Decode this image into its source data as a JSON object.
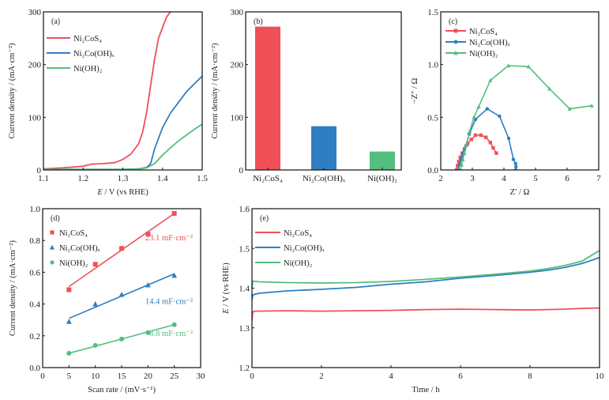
{
  "colors": {
    "red": "#ef5058",
    "blue": "#2f7ec1",
    "green": "#53be7e"
  },
  "chart_data": [
    {
      "id": "a",
      "panel_label": "(a)",
      "type": "line",
      "title": "",
      "xlabel_italic": "E",
      "xlabel_rest": " / V (vs RHE)",
      "ylabel": "Current density / (mA·cm⁻²)",
      "xlim": [
        1.1,
        1.5
      ],
      "ylim": [
        0,
        300
      ],
      "xticks": [
        1.1,
        1.2,
        1.3,
        1.4,
        1.5
      ],
      "xtick_labels": [
        "1.1",
        "1.2",
        "1.3",
        "1.4",
        "1.5"
      ],
      "yticks": [
        0,
        100,
        200,
        300
      ],
      "ytick_labels": [
        "0",
        "100",
        "200",
        "300"
      ],
      "legend": "top-left",
      "series": [
        {
          "name": "Ni₂CoS₄",
          "color": "red",
          "x": [
            1.1,
            1.15,
            1.2,
            1.22,
            1.25,
            1.28,
            1.3,
            1.32,
            1.34,
            1.35,
            1.36,
            1.37,
            1.38,
            1.39,
            1.4,
            1.41,
            1.42
          ],
          "y": [
            2,
            4,
            7,
            11,
            12,
            14,
            20,
            30,
            50,
            72,
            110,
            160,
            210,
            250,
            270,
            290,
            300
          ]
        },
        {
          "name": "Ni₂Co(OH)ₓ",
          "color": "blue",
          "x": [
            1.1,
            1.2,
            1.3,
            1.34,
            1.36,
            1.37,
            1.38,
            1.4,
            1.42,
            1.44,
            1.46,
            1.48,
            1.5
          ],
          "y": [
            1,
            1,
            1,
            2,
            5,
            12,
            40,
            80,
            108,
            128,
            148,
            163,
            178
          ]
        },
        {
          "name": "Ni(OH)₂",
          "color": "green",
          "x": [
            1.1,
            1.2,
            1.3,
            1.34,
            1.36,
            1.38,
            1.4,
            1.42,
            1.44,
            1.46,
            1.48,
            1.5
          ],
          "y": [
            1,
            1,
            1,
            2,
            4,
            12,
            28,
            42,
            55,
            66,
            77,
            87
          ]
        }
      ]
    },
    {
      "id": "b",
      "panel_label": "(b)",
      "type": "bar",
      "title": "",
      "xlabel": "",
      "ylabel": "Current density / (mA·cm⁻²)",
      "ylim": [
        0,
        300
      ],
      "yticks": [
        0,
        100,
        200,
        300
      ],
      "ytick_labels": [
        "0",
        "100",
        "200",
        "300"
      ],
      "categories": [
        "Ni₂CoS₄",
        "Ni₂Co(OH)ₓ",
        "Ni(OH)₂"
      ],
      "values": [
        272,
        83,
        35
      ],
      "bar_colors": [
        "red",
        "blue",
        "green"
      ]
    },
    {
      "id": "c",
      "panel_label": "(c)",
      "type": "line",
      "title": "",
      "xlabel": "Z′ / Ω",
      "ylabel": "−Z″ / Ω",
      "xlim": [
        2,
        7
      ],
      "ylim": [
        0,
        1.5
      ],
      "xticks": [
        2,
        3,
        4,
        5,
        6,
        7
      ],
      "xtick_labels": [
        "2",
        "3",
        "4",
        "5",
        "6",
        "7"
      ],
      "yticks": [
        0,
        0.5,
        1.0,
        1.5
      ],
      "ytick_labels": [
        "0.0",
        "0.5",
        "1.0",
        "1.5"
      ],
      "legend": "top-left",
      "series": [
        {
          "name": "Ni₂CoS₄",
          "color": "red",
          "marker": "square",
          "x": [
            2.5,
            2.53,
            2.57,
            2.62,
            2.68,
            2.75,
            2.85,
            2.97,
            3.1,
            3.27,
            3.43,
            3.57,
            3.66,
            3.76
          ],
          "y": [
            0.0,
            0.04,
            0.08,
            0.12,
            0.16,
            0.2,
            0.25,
            0.29,
            0.33,
            0.33,
            0.31,
            0.26,
            0.21,
            0.16
          ]
        },
        {
          "name": "Ni₂Co(OH)ₓ",
          "color": "blue",
          "marker": "circle",
          "x": [
            2.56,
            2.6,
            2.65,
            2.72,
            2.8,
            2.9,
            3.1,
            3.47,
            3.86,
            4.15,
            4.3,
            4.37,
            4.38,
            4.37
          ],
          "y": [
            0.0,
            0.05,
            0.1,
            0.16,
            0.23,
            0.34,
            0.48,
            0.58,
            0.51,
            0.3,
            0.1,
            0.06,
            0.03,
            0.0
          ]
        },
        {
          "name": "Ni(OH)₂",
          "color": "green",
          "marker": "triangle",
          "x": [
            2.63,
            2.66,
            2.7,
            2.75,
            2.82,
            2.92,
            3.05,
            3.2,
            3.57,
            4.14,
            4.78,
            5.44,
            6.08,
            6.78
          ],
          "y": [
            0.0,
            0.05,
            0.1,
            0.16,
            0.24,
            0.37,
            0.5,
            0.6,
            0.85,
            0.99,
            0.98,
            0.77,
            0.58,
            0.61
          ]
        }
      ]
    },
    {
      "id": "d",
      "panel_label": "(d)",
      "type": "scatter",
      "title": "",
      "xlabel": "Scan rate / (mV·s⁻¹)",
      "ylabel": "Current density / (mA·cm⁻²)",
      "xlim": [
        0,
        30
      ],
      "ylim": [
        0.0,
        1.0
      ],
      "xticks": [
        0,
        5,
        10,
        15,
        20,
        25,
        30
      ],
      "xtick_labels": [
        "0",
        "5",
        "10",
        "15",
        "20",
        "25",
        "30"
      ],
      "yticks": [
        0.0,
        0.2,
        0.4,
        0.6,
        0.8,
        1.0
      ],
      "ytick_labels": [
        "0.0",
        "0.2",
        "0.4",
        "0.6",
        "0.8",
        "1.0"
      ],
      "legend": "top-left",
      "series": [
        {
          "name": "Ni₂CoS₄",
          "color": "red",
          "marker": "square",
          "x": [
            5,
            10,
            15,
            20,
            25
          ],
          "y": [
            0.49,
            0.65,
            0.75,
            0.84,
            0.97
          ],
          "fit": [
            0.51,
            0.97
          ],
          "annotation": "23.1 mF·cm⁻²"
        },
        {
          "name": "Ni₂Co(OH)ₓ",
          "color": "blue",
          "marker": "triangle",
          "x": [
            5,
            10,
            15,
            20,
            25
          ],
          "y": [
            0.29,
            0.4,
            0.46,
            0.52,
            0.58
          ],
          "fit": [
            0.31,
            0.59
          ],
          "annotation": "14.4 mF·cm⁻²"
        },
        {
          "name": "Ni(OH)₂",
          "color": "green",
          "marker": "circle",
          "x": [
            5,
            10,
            15,
            20,
            25
          ],
          "y": [
            0.09,
            0.14,
            0.18,
            0.22,
            0.27
          ],
          "fit": [
            0.09,
            0.27
          ],
          "annotation": "8.8 mF·cm⁻²"
        }
      ]
    },
    {
      "id": "e",
      "panel_label": "(e)",
      "type": "line",
      "title": "",
      "xlabel": "Time / h",
      "ylabel_italic": "E",
      "ylabel_rest": " / V (vs RHE)",
      "xlim": [
        0,
        10
      ],
      "ylim": [
        1.2,
        1.6
      ],
      "xticks": [
        0,
        2,
        4,
        6,
        8,
        10
      ],
      "xtick_labels": [
        "0",
        "2",
        "4",
        "6",
        "8",
        "10"
      ],
      "yticks": [
        1.2,
        1.3,
        1.4,
        1.5,
        1.6
      ],
      "ytick_labels": [
        "1.2",
        "1.3",
        "1.4",
        "1.5",
        "1.6"
      ],
      "legend": "top-left",
      "series": [
        {
          "name": "Ni₂CoS₄",
          "color": "red",
          "x": [
            0,
            0.02,
            0.1,
            1,
            2,
            3,
            4,
            5,
            6,
            7,
            8,
            9,
            9.5,
            10
          ],
          "y": [
            1.318,
            1.34,
            1.342,
            1.343,
            1.342,
            1.343,
            1.344,
            1.346,
            1.347,
            1.346,
            1.345,
            1.347,
            1.349,
            1.35
          ]
        },
        {
          "name": "Ni₂Co(OH)ₓ",
          "color": "blue",
          "x": [
            0,
            0.02,
            0.2,
            1,
            2,
            3,
            4,
            5,
            6,
            7,
            8,
            8.5,
            9,
            9.5,
            10
          ],
          "y": [
            1.37,
            1.383,
            1.387,
            1.393,
            1.397,
            1.402,
            1.41,
            1.416,
            1.425,
            1.432,
            1.44,
            1.445,
            1.452,
            1.462,
            1.477
          ]
        },
        {
          "name": "Ni(OH)₂",
          "color": "green",
          "x": [
            0,
            0.02,
            0.2,
            1,
            2,
            3,
            4,
            5,
            6,
            7,
            8,
            8.5,
            9,
            9.5,
            10
          ],
          "y": [
            1.4,
            1.418,
            1.416,
            1.414,
            1.413,
            1.414,
            1.417,
            1.422,
            1.428,
            1.435,
            1.443,
            1.449,
            1.457,
            1.468,
            1.495
          ]
        }
      ]
    }
  ]
}
